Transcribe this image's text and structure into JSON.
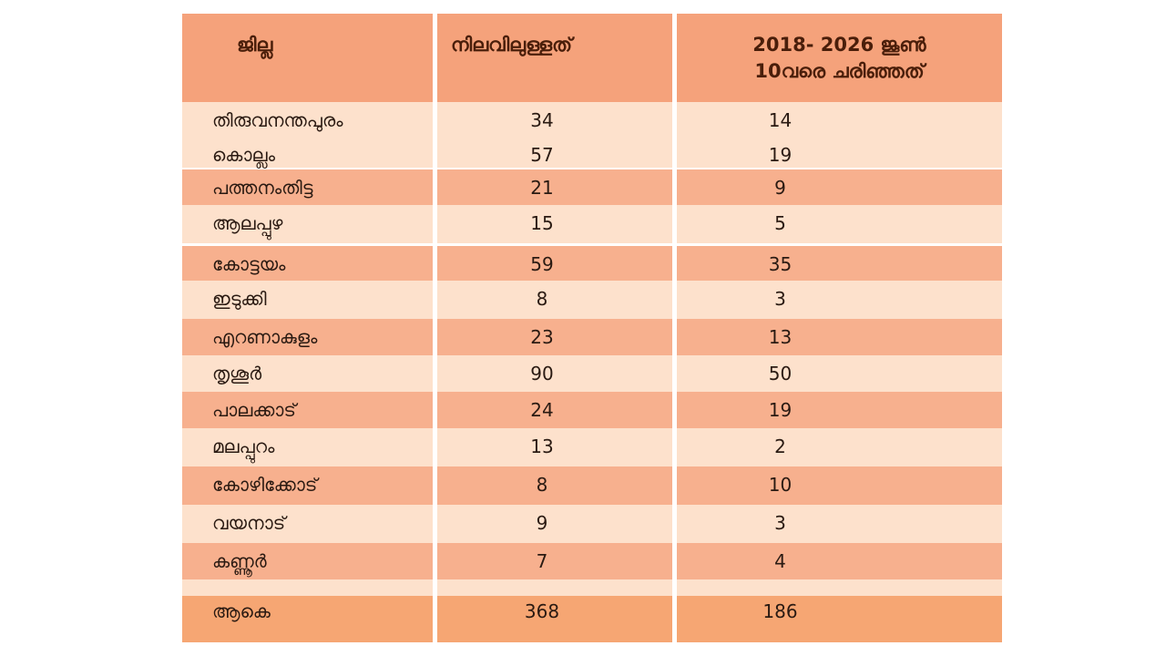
{
  "table": {
    "headers": {
      "district": "ജില്ല",
      "existing": "നിലവിലുള്ളത്",
      "lost_line1": "2018- 2026 ജൂൺ",
      "lost_line2": "10വരെ ചരിഞ്ഞത്"
    },
    "rows": [
      {
        "district": "തിരുവനന്തപുരം",
        "existing": "34",
        "lost": "14"
      },
      {
        "district": "കൊല്ലം",
        "existing": "57",
        "lost": "19"
      },
      {
        "district": "പത്തനംതിട്ട",
        "existing": "21",
        "lost": "9"
      },
      {
        "district": "ആലപ്പുഴ",
        "existing": "15",
        "lost": "5"
      },
      {
        "district": "കോട്ടയം",
        "existing": "59",
        "lost": "35"
      },
      {
        "district": "ഇടുക്കി",
        "existing": "8",
        "lost": "3"
      },
      {
        "district": "എറണാകുളം",
        "existing": "23",
        "lost": "13"
      },
      {
        "district": "തൃശൂർ",
        "existing": "90",
        "lost": "50"
      },
      {
        "district": "പാലക്കാട്",
        "existing": "24",
        "lost": "19"
      },
      {
        "district": "മലപ്പുറം",
        "existing": "13",
        "lost": "2"
      },
      {
        "district": "കോഴിക്കോട്",
        "existing": "8",
        "lost": "10"
      },
      {
        "district": "വയനാട്",
        "existing": "9",
        "lost": "3"
      },
      {
        "district": "കണ്ണൂർ",
        "existing": "7",
        "lost": "4"
      }
    ],
    "total": {
      "district": "ആകെ",
      "existing": "368",
      "lost": "186"
    }
  }
}
